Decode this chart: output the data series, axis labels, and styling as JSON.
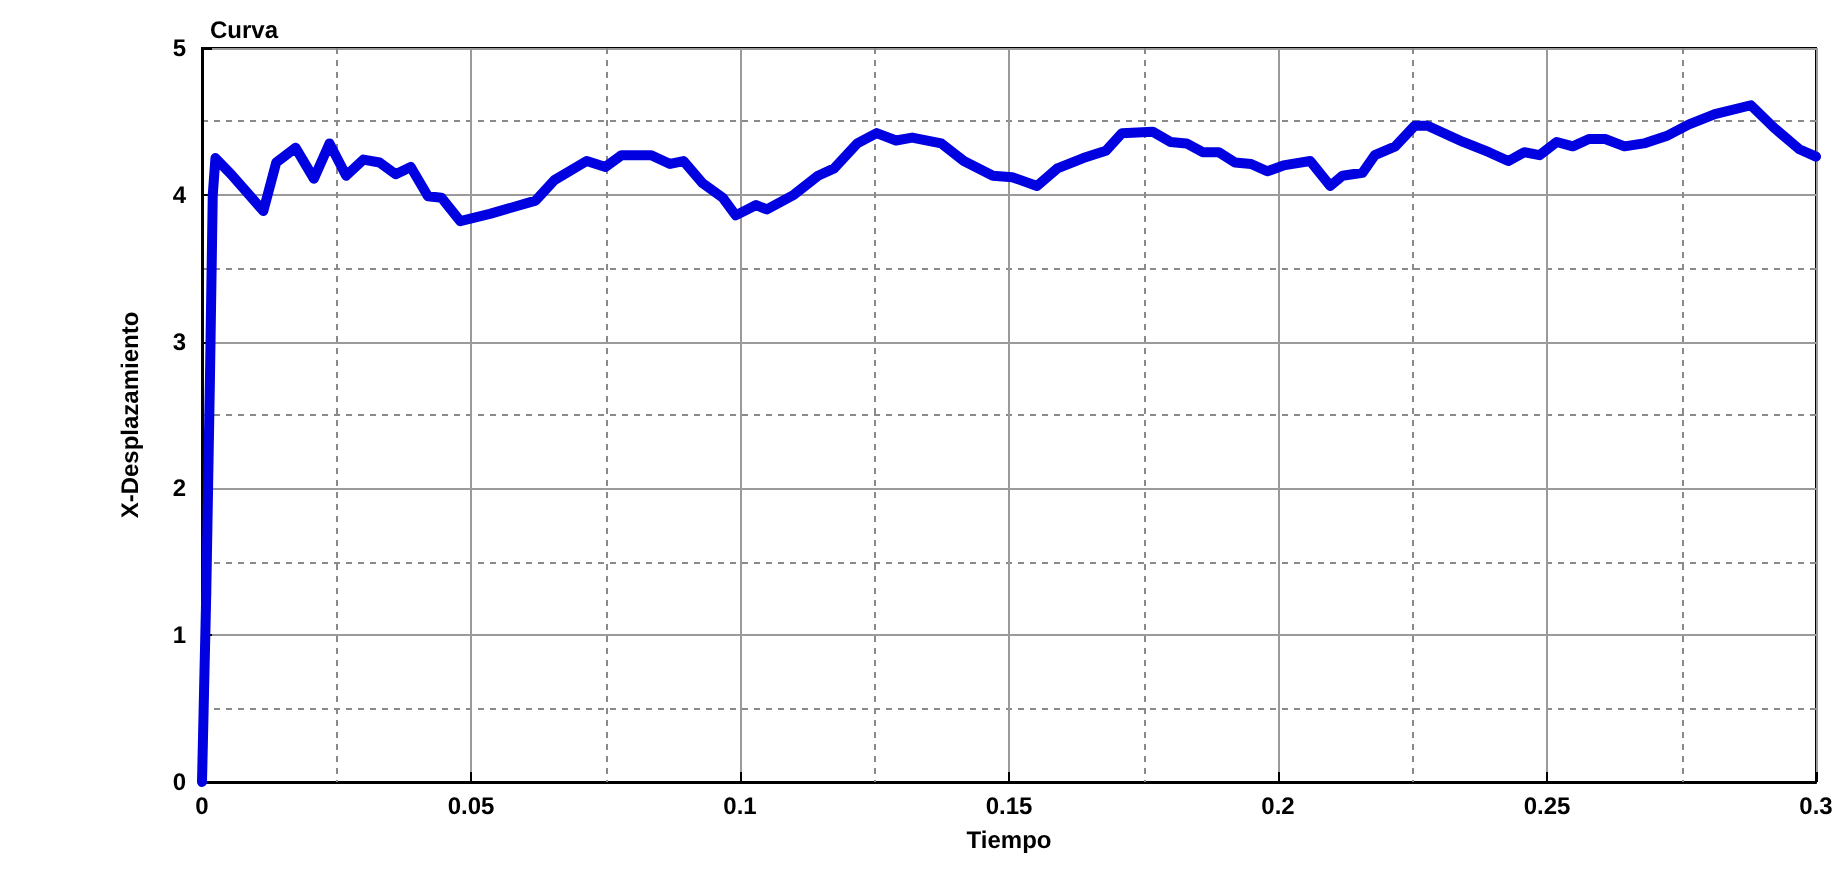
{
  "chart_data": {
    "type": "line",
    "title": "Curva",
    "xlabel": "Tiempo",
    "ylabel": "X-Desplazamiento",
    "xlim": [
      0,
      0.3
    ],
    "xticks": [
      0,
      0.05,
      0.1,
      0.15,
      0.2,
      0.25,
      0.3
    ],
    "ylim": [
      0,
      5
    ],
    "yticks": [
      0,
      1,
      2,
      3,
      4,
      5
    ],
    "grid": true,
    "marker": "none",
    "line_style": "solid",
    "series": [
      {
        "color": "#0000e0",
        "x": [
          0,
          0.0008,
          0.0015,
          0.002,
          0.0025,
          0.0054,
          0.0114,
          0.0138,
          0.0174,
          0.0208,
          0.0237,
          0.0268,
          0.03,
          0.033,
          0.036,
          0.0388,
          0.042,
          0.0445,
          0.048,
          0.0535,
          0.062,
          0.0655,
          0.0715,
          0.075,
          0.078,
          0.0835,
          0.087,
          0.0895,
          0.093,
          0.0968,
          0.0992,
          0.103,
          0.105,
          0.11,
          0.1145,
          0.1175,
          0.1218,
          0.1254,
          0.129,
          0.132,
          0.1374,
          0.1416,
          0.147,
          0.1506,
          0.1552,
          0.159,
          0.1638,
          0.168,
          0.171,
          0.1767,
          0.18,
          0.183,
          0.186,
          0.189,
          0.192,
          0.195,
          0.198,
          0.201,
          0.206,
          0.2097,
          0.212,
          0.2157,
          0.218,
          0.2218,
          0.2254,
          0.2278,
          0.2344,
          0.2392,
          0.2428,
          0.2458,
          0.2486,
          0.2518,
          0.2548,
          0.2578,
          0.2608,
          0.2644,
          0.268,
          0.2722,
          0.2764,
          0.2812,
          0.2879,
          0.2921,
          0.2969,
          0.3
        ],
        "values": [
          0,
          1.3,
          2.8,
          4.0,
          4.25,
          4.14,
          3.89,
          4.22,
          4.32,
          4.11,
          4.35,
          4.13,
          4.24,
          4.22,
          4.14,
          4.19,
          3.99,
          3.98,
          3.82,
          3.87,
          3.96,
          4.1,
          4.23,
          4.19,
          4.27,
          4.27,
          4.21,
          4.23,
          4.08,
          3.98,
          3.86,
          3.93,
          3.9,
          4.0,
          4.13,
          4.18,
          4.35,
          4.42,
          4.37,
          4.39,
          4.35,
          4.23,
          4.13,
          4.12,
          4.06,
          4.18,
          4.25,
          4.3,
          4.42,
          4.43,
          4.36,
          4.35,
          4.29,
          4.29,
          4.22,
          4.21,
          4.16,
          4.2,
          4.23,
          4.06,
          4.13,
          4.15,
          4.27,
          4.33,
          4.47,
          4.47,
          4.36,
          4.29,
          4.23,
          4.29,
          4.27,
          4.36,
          4.33,
          4.38,
          4.38,
          4.33,
          4.35,
          4.4,
          4.48,
          4.55,
          4.61,
          4.46,
          4.31,
          4.26
        ]
      }
    ]
  }
}
